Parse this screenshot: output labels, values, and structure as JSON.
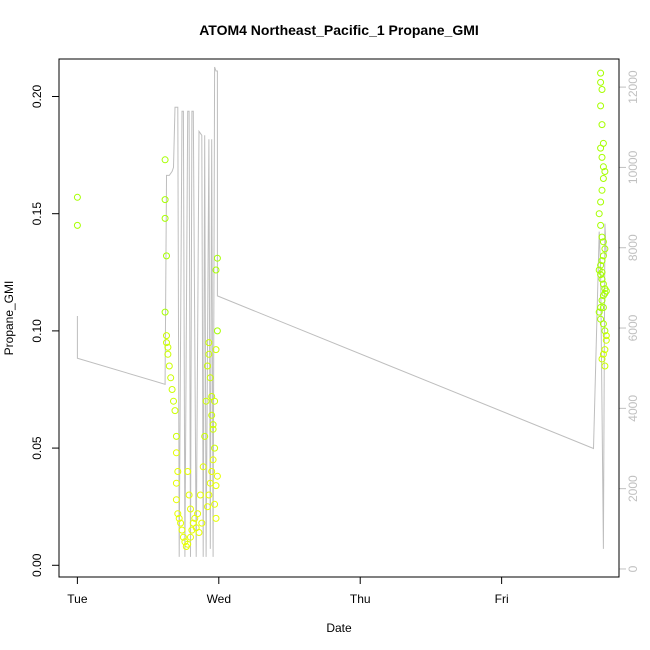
{
  "chart_data": {
    "type": "scatter",
    "title": "ATOM4 Northeast_Pacific_1 Propane_GMI",
    "xlabel": "Date",
    "ylabel": "Propane_GMI",
    "x_ticks": [
      {
        "label": "Tue",
        "value": 0
      },
      {
        "label": "Wed",
        "value": 1
      },
      {
        "label": "Thu",
        "value": 2
      },
      {
        "label": "Fri",
        "value": 3
      }
    ],
    "xlim": [
      -0.13,
      3.83
    ],
    "ylim": [
      -0.005,
      0.216
    ],
    "y_ticks": [
      0.0,
      0.05,
      0.1,
      0.15,
      0.2
    ],
    "y_tick_labels": [
      "0.00",
      "0.05",
      "0.10",
      "0.15",
      "0.20"
    ],
    "y2lim": [
      -200,
      12700
    ],
    "y2_ticks": [
      0,
      2000,
      4000,
      6000,
      8000,
      10000,
      12000
    ],
    "y2_tick_labels": [
      "0",
      "2000",
      "4000",
      "6000",
      "8000",
      "10000",
      "12000"
    ],
    "colors": {
      "high": "#a6ff00",
      "mid": "#ccff00",
      "low": "#e6ff00",
      "altitude_line": "#bebebe",
      "right_axis": "#c0c0c0"
    },
    "series": [
      {
        "kind": "points",
        "x": [
          0.0,
          0.0,
          0.62,
          0.62,
          0.62,
          0.63,
          0.62,
          0.63,
          0.63,
          0.64,
          0.64,
          0.65,
          0.66,
          0.67,
          0.68,
          0.69,
          0.7,
          0.7,
          0.71,
          0.7,
          0.7,
          0.71,
          0.72,
          0.73,
          0.74,
          0.75,
          0.76,
          0.77,
          0.78,
          0.8,
          0.81,
          0.82,
          0.8,
          0.79,
          0.78,
          0.83,
          0.84,
          0.86,
          0.88,
          0.85,
          0.87,
          0.89,
          0.9,
          0.91,
          0.92,
          0.93,
          0.93,
          0.94,
          0.95,
          0.95,
          0.96,
          0.97,
          0.96,
          0.95,
          0.94,
          0.93,
          0.92,
          0.98,
          0.98,
          0.99,
          0.99,
          0.98,
          0.97,
          0.96,
          0.99,
          0.98,
          0.97
        ],
        "y": [
          0.157,
          0.145,
          0.173,
          0.156,
          0.148,
          0.132,
          0.108,
          0.098,
          0.095,
          0.093,
          0.09,
          0.085,
          0.08,
          0.075,
          0.07,
          0.066,
          0.055,
          0.048,
          0.04,
          0.035,
          0.028,
          0.022,
          0.02,
          0.018,
          0.015,
          0.012,
          0.01,
          0.008,
          0.009,
          0.012,
          0.015,
          0.018,
          0.024,
          0.03,
          0.04,
          0.02,
          0.016,
          0.014,
          0.018,
          0.022,
          0.03,
          0.042,
          0.055,
          0.07,
          0.085,
          0.095,
          0.09,
          0.08,
          0.072,
          0.064,
          0.058,
          0.05,
          0.045,
          0.04,
          0.035,
          0.03,
          0.025,
          0.02,
          0.126,
          0.131,
          0.1,
          0.092,
          0.07,
          0.06,
          0.038,
          0.034,
          0.026
        ]
      },
      {
        "kind": "points",
        "x": [
          3.7,
          3.7,
          3.71,
          3.7,
          3.71,
          3.72,
          3.7,
          3.71,
          3.72,
          3.73,
          3.72,
          3.71,
          3.7,
          3.69,
          3.7,
          3.71,
          3.72,
          3.73,
          3.72,
          3.71,
          3.7,
          3.69,
          3.7,
          3.71,
          3.72,
          3.73,
          3.74,
          3.73,
          3.72,
          3.71,
          3.7,
          3.69,
          3.7,
          3.72,
          3.73,
          3.74,
          3.74,
          3.73,
          3.72,
          3.71,
          3.73,
          3.72,
          3.71
        ],
        "y": [
          0.21,
          0.206,
          0.203,
          0.196,
          0.188,
          0.18,
          0.178,
          0.174,
          0.17,
          0.168,
          0.165,
          0.16,
          0.155,
          0.15,
          0.145,
          0.14,
          0.138,
          0.135,
          0.132,
          0.13,
          0.128,
          0.126,
          0.124,
          0.122,
          0.12,
          0.118,
          0.117,
          0.116,
          0.115,
          0.113,
          0.11,
          0.108,
          0.105,
          0.103,
          0.1,
          0.098,
          0.096,
          0.092,
          0.09,
          0.088,
          0.085,
          0.11,
          0.125
        ]
      },
      {
        "kind": "altitude",
        "x": [
          0.0,
          0.0,
          0.62,
          0.62,
          0.63,
          0.63,
          0.65,
          0.67,
          0.68,
          0.69,
          0.7,
          0.71,
          0.72,
          0.74,
          0.75,
          0.76,
          0.78,
          0.79,
          0.8,
          0.81,
          0.82,
          0.84,
          0.86,
          0.88,
          0.89,
          0.9,
          0.91,
          0.93,
          0.94,
          0.95,
          0.96,
          0.97,
          0.98,
          0.99,
          0.99,
          3.65,
          3.69,
          3.7,
          3.72,
          3.73,
          3.74
        ],
        "y": [
          6300,
          5250,
          4600,
          4700,
          9700,
          9800,
          9800,
          9900,
          10000,
          11500,
          11500,
          11500,
          300,
          11400,
          11400,
          300,
          11400,
          11400,
          300,
          11400,
          11400,
          300,
          10900,
          10800,
          300,
          10800,
          300,
          10700,
          500,
          10700,
          300,
          12500,
          12400,
          12400,
          6800,
          3000,
          8400,
          7500,
          500,
          8600,
          7800
        ]
      }
    ]
  }
}
